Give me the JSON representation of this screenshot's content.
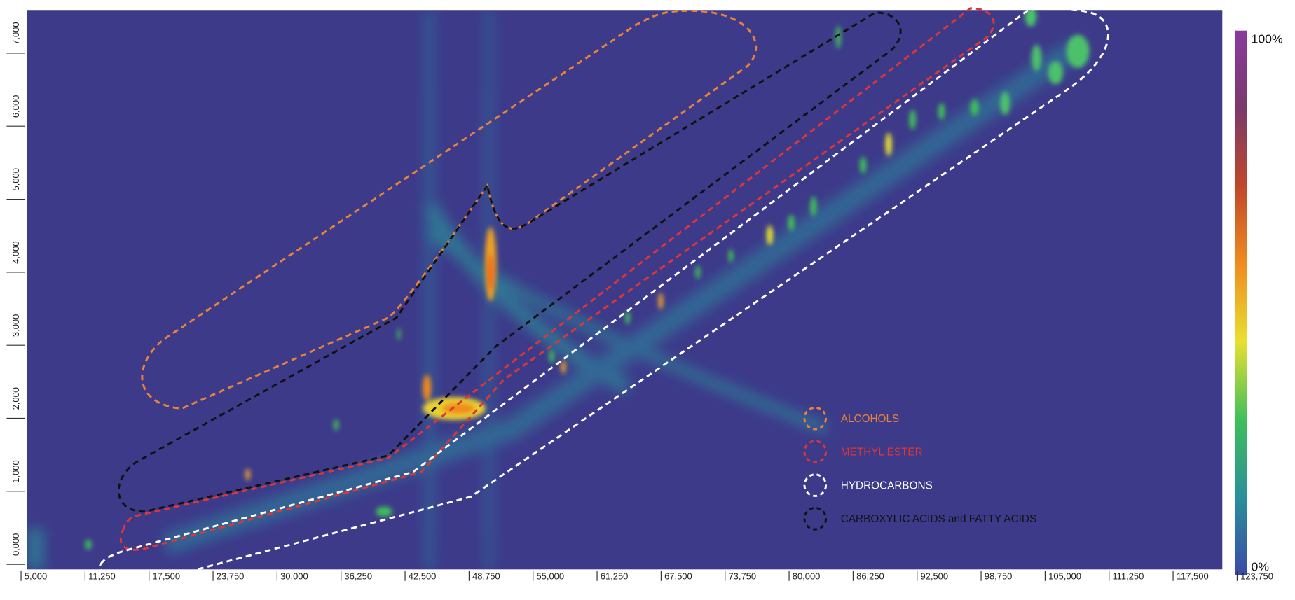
{
  "chart_data": {
    "type": "heatmap",
    "xlim": [
      5605,
      122305
    ],
    "xticks": [
      {
        "value": 5000,
        "label": "5,000"
      },
      {
        "value": 11250,
        "label": "11,250"
      },
      {
        "value": 17500,
        "label": "17,500"
      },
      {
        "value": 23750,
        "label": "23,750"
      },
      {
        "value": 30000,
        "label": "30,000"
      },
      {
        "value": 36250,
        "label": "36,250"
      },
      {
        "value": 42500,
        "label": "42,500"
      },
      {
        "value": 48750,
        "label": "48,750"
      },
      {
        "value": 55000,
        "label": "55,000"
      },
      {
        "value": 61250,
        "label": "61,250"
      },
      {
        "value": 67500,
        "label": "67,500"
      },
      {
        "value": 73750,
        "label": "73,750"
      },
      {
        "value": 80000,
        "label": "80,000"
      },
      {
        "value": 86250,
        "label": "86,250"
      },
      {
        "value": 92500,
        "label": "92,500"
      },
      {
        "value": 98750,
        "label": "98,750"
      },
      {
        "value": 105000,
        "label": "105,000"
      },
      {
        "value": 111250,
        "label": "111,250"
      },
      {
        "value": 117500,
        "label": "117,500"
      },
      {
        "value": 123750,
        "label": "123,750"
      }
    ],
    "ylim": [
      -340,
      7320
    ],
    "yticks": [
      {
        "value": 0,
        "label": "0,000"
      },
      {
        "value": 1000,
        "label": "1,000"
      },
      {
        "value": 2000,
        "label": "2,000"
      },
      {
        "value": 3000,
        "label": "3,000"
      },
      {
        "value": 4000,
        "label": "4,000"
      },
      {
        "value": 5000,
        "label": "5,000"
      },
      {
        "value": 6000,
        "label": "6,000"
      },
      {
        "value": 7000,
        "label": "7,000"
      }
    ],
    "colorbar": {
      "lim": [
        0,
        100
      ],
      "ticks": [
        {
          "value": 100,
          "label": "100%"
        },
        {
          "value": 0,
          "label": "0%"
        }
      ],
      "colors": [
        "#3b4aa8",
        "#2a8f9a",
        "#3fbf5a",
        "#e8e030",
        "#f08c1e",
        "#c0472a",
        "#7a3a6a",
        "#8a3aa0"
      ]
    },
    "legend": [
      {
        "name": "ALCOHOLS",
        "color": "#e8823a"
      },
      {
        "name": "METHYL ESTER",
        "color": "#e03535"
      },
      {
        "name": "HYDROCARBONS",
        "color": "#ffffff"
      },
      {
        "name": "CARBOXYLIC ACIDS and FATTY ACIDS",
        "color": "#111111"
      }
    ]
  }
}
